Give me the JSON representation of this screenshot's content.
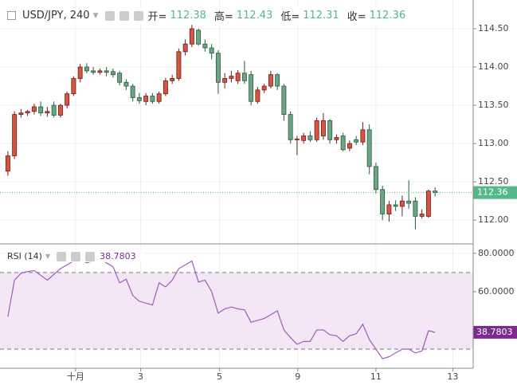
{
  "chart_data": [
    {
      "type": "candlestick",
      "title": "USD/JPY, 240",
      "header_labels": [
        "开=",
        "高=",
        "低=",
        "收="
      ],
      "x": [
        0,
        1,
        2,
        3,
        4,
        5,
        6,
        7,
        8,
        9,
        10,
        11,
        12,
        13,
        14,
        15,
        16,
        17,
        18,
        19,
        20,
        21,
        22,
        23,
        24,
        25,
        26,
        27,
        28,
        29,
        30,
        31,
        32,
        33,
        34,
        35,
        36,
        37,
        38,
        39,
        40,
        41,
        42,
        43,
        44,
        45,
        46,
        47,
        48,
        49,
        50,
        51,
        52,
        53,
        54,
        55,
        56,
        57,
        58,
        59,
        60,
        61,
        62,
        63,
        64,
        65
      ],
      "open": [
        112.64,
        112.84,
        113.38,
        113.4,
        113.42,
        113.48,
        113.4,
        113.5,
        113.37,
        113.5,
        113.65,
        113.85,
        114.0,
        113.95,
        113.93,
        113.95,
        113.94,
        113.92,
        113.8,
        113.75,
        113.6,
        113.55,
        113.62,
        113.55,
        113.65,
        113.82,
        113.85,
        114.2,
        114.3,
        114.48,
        114.3,
        114.25,
        114.18,
        113.8,
        113.85,
        113.82,
        113.92,
        113.9,
        113.55,
        113.7,
        113.75,
        113.9,
        113.75,
        113.38,
        113.05,
        113.04,
        113.1,
        113.05,
        113.1,
        113.3,
        113.05,
        113.1,
        112.94,
        113.05,
        113.02,
        113.18,
        112.7,
        112.4,
        112.08,
        112.2,
        112.18,
        112.25,
        112.25,
        112.05,
        112.05,
        112.38
      ],
      "high": [
        112.9,
        113.42,
        113.45,
        113.44,
        113.52,
        113.55,
        113.48,
        113.55,
        113.52,
        113.68,
        113.88,
        114.04,
        114.05,
        114.0,
        113.98,
        114.0,
        113.98,
        113.95,
        113.84,
        113.78,
        113.66,
        113.66,
        113.66,
        113.68,
        113.86,
        113.9,
        114.24,
        114.36,
        114.55,
        114.5,
        114.36,
        114.3,
        114.22,
        113.92,
        113.95,
        113.96,
        114.08,
        113.95,
        113.74,
        113.78,
        113.95,
        113.92,
        113.78,
        113.42,
        113.1,
        113.14,
        113.16,
        113.34,
        113.4,
        113.32,
        113.12,
        113.14,
        113.04,
        113.1,
        113.28,
        113.25,
        112.75,
        112.45,
        112.25,
        112.26,
        112.32,
        112.52,
        112.3,
        112.14,
        112.4,
        112.43
      ],
      "low": [
        112.58,
        112.8,
        113.34,
        113.36,
        113.38,
        113.36,
        113.35,
        113.34,
        113.34,
        113.46,
        113.62,
        113.8,
        113.92,
        113.9,
        113.9,
        113.88,
        113.86,
        113.76,
        113.7,
        113.55,
        113.52,
        113.5,
        113.52,
        113.52,
        113.62,
        113.78,
        113.82,
        114.15,
        114.26,
        114.28,
        114.2,
        114.1,
        113.65,
        113.72,
        113.8,
        113.78,
        113.78,
        113.5,
        113.52,
        113.66,
        113.72,
        113.7,
        113.3,
        113.0,
        112.85,
        113.0,
        113.02,
        113.02,
        113.05,
        113.0,
        113.0,
        112.9,
        112.9,
        112.98,
        112.98,
        112.6,
        112.35,
        112.0,
        111.98,
        112.12,
        112.05,
        112.15,
        111.88,
        112.02,
        112.03,
        112.31
      ],
      "close": [
        112.84,
        113.38,
        113.4,
        113.42,
        113.48,
        113.4,
        113.42,
        113.37,
        113.5,
        113.65,
        113.85,
        114.0,
        113.95,
        113.93,
        113.95,
        113.93,
        113.9,
        113.8,
        113.75,
        113.6,
        113.56,
        113.62,
        113.55,
        113.65,
        113.82,
        113.85,
        114.2,
        114.3,
        114.5,
        114.3,
        114.25,
        114.18,
        113.8,
        113.85,
        113.88,
        113.92,
        113.82,
        113.55,
        113.7,
        113.75,
        113.9,
        113.75,
        113.38,
        113.05,
        113.06,
        113.1,
        113.05,
        113.3,
        113.3,
        113.05,
        113.08,
        112.92,
        113.0,
        113.02,
        113.18,
        112.7,
        112.4,
        112.08,
        112.2,
        112.18,
        112.25,
        112.22,
        112.05,
        112.08,
        112.38,
        112.36
      ],
      "up_color": "#d75442",
      "down_color": "#6ba583",
      "up_border": "#6b1f17",
      "down_border": "#2d5a3f",
      "last_color": "#53b987",
      "xlim": [
        -1.2,
        70.8
      ],
      "xticks": [
        {
          "value": 10.3,
          "label": "十月"
        },
        {
          "value": 20.2,
          "label": "3"
        },
        {
          "value": 32.2,
          "label": "5"
        },
        {
          "value": 44.1,
          "label": "9"
        },
        {
          "value": 56,
          "label": "11"
        },
        {
          "value": 67.7,
          "label": "13"
        }
      ],
      "ylim": [
        111.7,
        114.875
      ],
      "yticks": [
        {
          "value": 112,
          "label": "112.00"
        },
        {
          "value": 112.5,
          "label": "112.50"
        },
        {
          "value": 113,
          "label": "113.00"
        },
        {
          "value": 113.5,
          "label": "113.50"
        },
        {
          "value": 114,
          "label": "114.00"
        },
        {
          "value": 114.5,
          "label": "114.50"
        }
      ],
      "grid": true
    },
    {
      "type": "line",
      "title": "RSI (14)",
      "values": [
        47,
        66,
        69.6,
        70.5,
        71,
        68.5,
        66,
        69,
        72,
        74,
        76,
        77,
        75,
        76,
        77,
        75,
        73,
        64.6,
        66.5,
        58,
        55,
        54,
        53,
        64.6,
        62.5,
        66,
        72,
        74,
        76,
        65,
        66,
        60,
        48.8,
        51,
        52,
        51,
        50.5,
        44,
        45,
        46,
        48,
        50,
        40,
        36,
        32.5,
        34,
        34,
        40,
        40,
        37.5,
        37,
        34,
        37,
        38,
        43,
        35,
        30,
        25,
        26,
        28,
        30,
        30,
        28,
        29,
        39.6,
        38.7803
      ],
      "color": "#a05cb8",
      "band_fill": "#f3e6f5",
      "bands": [
        30,
        70
      ],
      "ylim": [
        20,
        84.5
      ],
      "yticks": [
        {
          "value": 60,
          "label": "60.0000"
        },
        {
          "value": 80,
          "label": "80.0000"
        }
      ],
      "grid": true
    }
  ]
}
